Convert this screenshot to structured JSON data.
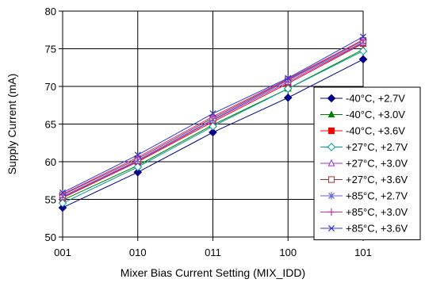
{
  "chart_data": {
    "type": "line",
    "xlabel": "Mixer Bias Current Setting (MIX_IDD)",
    "ylabel": "Supply Current (mA)",
    "categories": [
      "001",
      "010",
      "011",
      "100",
      "101"
    ],
    "ylim": [
      50,
      80
    ],
    "yticks": [
      50,
      55,
      60,
      65,
      70,
      75,
      80
    ],
    "grid": true,
    "legend_position": "right",
    "series": [
      {
        "name": "-40°C, +2.7V",
        "color": "#00008B",
        "marker": "diamond-filled",
        "values": [
          53.9,
          58.6,
          63.9,
          68.5,
          73.6
        ]
      },
      {
        "name": "-40°C, +3.0V",
        "color": "#008000",
        "marker": "triangle-filled",
        "values": [
          54.9,
          59.5,
          64.9,
          69.7,
          74.9
        ]
      },
      {
        "name": "-40°C, +3.6V",
        "color": "#FF0000",
        "marker": "square-filled",
        "values": [
          55.2,
          60.0,
          65.3,
          70.4,
          75.7
        ]
      },
      {
        "name": "+27°C, +2.7V",
        "color": "#009999",
        "marker": "diamond-open",
        "values": [
          54.5,
          59.3,
          64.7,
          69.7,
          74.7
        ]
      },
      {
        "name": "+27°C, +3.0V",
        "color": "#9933CC",
        "marker": "triangle-open",
        "values": [
          55.3,
          60.1,
          65.5,
          70.6,
          75.8
        ]
      },
      {
        "name": "+27°C, +3.6V",
        "color": "#993333",
        "marker": "square-open",
        "values": [
          55.6,
          60.4,
          65.8,
          70.9,
          76.1
        ]
      },
      {
        "name": "+85°C, +2.7V",
        "color": "#6666CC",
        "marker": "asterisk",
        "values": [
          55.4,
          60.2,
          65.6,
          70.8,
          75.9
        ]
      },
      {
        "name": "+85°C, +3.0V",
        "color": "#CC3399",
        "marker": "plus",
        "values": [
          55.7,
          60.6,
          66.0,
          71.0,
          76.2
        ]
      },
      {
        "name": "+85°C, +3.6V",
        "color": "#3333CC",
        "marker": "x",
        "values": [
          55.9,
          60.9,
          66.4,
          71.1,
          76.6
        ]
      }
    ]
  }
}
